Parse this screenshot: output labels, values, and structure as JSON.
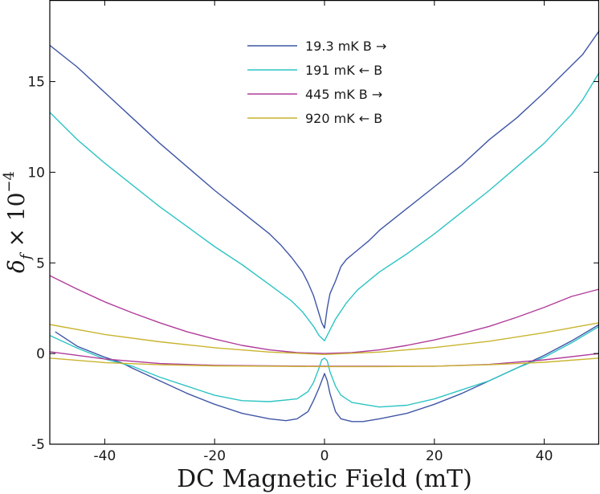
{
  "chart_data": {
    "type": "line",
    "title": "",
    "xlabel": "DC Magnetic Field (mT)",
    "ylabel": "δ_f × 10^−4",
    "ylabel_parts": {
      "base": "δ",
      "sub": "f",
      "times": " × 10",
      "exp": "−4"
    },
    "xlim": [
      -50,
      50
    ],
    "ylim": [
      -5,
      19.5
    ],
    "xticks": [
      -40,
      -20,
      0,
      20,
      40
    ],
    "xtick_labels": [
      "-40",
      "-20",
      "0",
      "20",
      "40"
    ],
    "yticks": [
      -5,
      0,
      5,
      10,
      15
    ],
    "ytick_labels": [
      "-5",
      "0",
      "5",
      "10",
      "15"
    ],
    "grid": false,
    "legend_position": "top-center",
    "series": [
      {
        "name": "19.3 mK B →",
        "color": "#3f56a6",
        "upper": {
          "x": [
            -50,
            -45,
            -40,
            -35,
            -30,
            -25,
            -20,
            -15,
            -10,
            -8,
            -6,
            -4,
            -3,
            -2,
            -1,
            -0.5,
            0,
            0.5,
            1,
            2,
            3,
            4,
            6,
            8,
            10,
            15,
            20,
            25,
            30,
            35,
            40,
            45,
            47,
            50
          ],
          "y": [
            17.0,
            15.8,
            14.4,
            13.0,
            11.6,
            10.3,
            9.0,
            7.8,
            6.6,
            6.0,
            5.3,
            4.5,
            3.9,
            3.2,
            2.2,
            1.7,
            1.4,
            2.5,
            3.3,
            4.0,
            4.8,
            5.2,
            5.7,
            6.2,
            6.8,
            8.0,
            9.2,
            10.4,
            11.8,
            13.0,
            14.4,
            15.9,
            16.5,
            17.8
          ]
        },
        "lower": {
          "x": [
            -49,
            -45,
            -40,
            -37,
            -35,
            -30,
            -25,
            -20,
            -15,
            -10,
            -7,
            -5,
            -3,
            -2,
            -1,
            0,
            0.5,
            1,
            2,
            3,
            5,
            7,
            10,
            15,
            20,
            25,
            30,
            35,
            40,
            45,
            50
          ],
          "y": [
            1.2,
            0.4,
            -0.2,
            -0.5,
            -0.8,
            -1.5,
            -2.2,
            -2.8,
            -3.3,
            -3.6,
            -3.7,
            -3.6,
            -3.2,
            -2.6,
            -1.9,
            -1.1,
            -1.5,
            -2.2,
            -3.2,
            -3.6,
            -3.75,
            -3.75,
            -3.6,
            -3.3,
            -2.8,
            -2.2,
            -1.5,
            -0.8,
            -0.1,
            0.7,
            1.6
          ]
        }
      },
      {
        "name": "191 mK ← B",
        "color": "#2ec4c4",
        "upper": {
          "x": [
            -50,
            -47,
            -45,
            -40,
            -35,
            -30,
            -25,
            -20,
            -15,
            -10,
            -6,
            -4,
            -2,
            -1,
            0,
            1,
            2,
            4,
            6,
            10,
            15,
            20,
            25,
            30,
            35,
            40,
            45,
            47,
            50
          ],
          "y": [
            13.3,
            12.4,
            11.8,
            10.5,
            9.3,
            8.1,
            7.0,
            5.9,
            4.9,
            3.8,
            2.9,
            2.3,
            1.5,
            1.0,
            0.7,
            1.3,
            1.9,
            2.8,
            3.5,
            4.5,
            5.5,
            6.6,
            7.8,
            9.0,
            10.3,
            11.6,
            13.2,
            14.0,
            15.5
          ]
        },
        "lower": {
          "x": [
            -50,
            -45,
            -40,
            -35,
            -30,
            -25,
            -20,
            -15,
            -10,
            -5,
            -3,
            -2,
            -1,
            -0.5,
            0,
            0.5,
            1,
            2,
            3,
            5,
            10,
            15,
            20,
            25,
            30,
            35,
            40,
            45,
            50
          ],
          "y": [
            1.0,
            0.3,
            -0.3,
            -0.7,
            -1.3,
            -1.8,
            -2.3,
            -2.6,
            -2.65,
            -2.5,
            -2.1,
            -1.6,
            -0.8,
            -0.35,
            -0.25,
            -0.4,
            -1.0,
            -1.8,
            -2.3,
            -2.7,
            -2.95,
            -2.85,
            -2.5,
            -2.0,
            -1.5,
            -0.8,
            -0.2,
            0.6,
            1.5
          ]
        }
      },
      {
        "name": "445 mK B →",
        "color": "#b03c9a",
        "upper": {
          "x": [
            -50,
            -45,
            -40,
            -35,
            -30,
            -25,
            -20,
            -15,
            -10,
            -5,
            0,
            5,
            10,
            15,
            20,
            25,
            30,
            35,
            40,
            45,
            50
          ],
          "y": [
            4.3,
            3.55,
            2.85,
            2.25,
            1.7,
            1.2,
            0.8,
            0.45,
            0.2,
            0.05,
            0.0,
            0.05,
            0.2,
            0.45,
            0.75,
            1.1,
            1.5,
            2.0,
            2.55,
            3.15,
            3.55
          ]
        },
        "lower": {
          "x": [
            -50,
            -40,
            -30,
            -20,
            -10,
            0,
            10,
            20,
            30,
            40,
            50
          ],
          "y": [
            0.1,
            -0.3,
            -0.55,
            -0.65,
            -0.68,
            -0.7,
            -0.7,
            -0.7,
            -0.6,
            -0.35,
            0.0
          ]
        }
      },
      {
        "name": "920 mK ← B",
        "color": "#c9b42e",
        "upper": {
          "x": [
            -50,
            -40,
            -30,
            -20,
            -10,
            0,
            10,
            20,
            30,
            40,
            50
          ],
          "y": [
            1.6,
            1.05,
            0.65,
            0.32,
            0.08,
            -0.05,
            0.08,
            0.33,
            0.68,
            1.15,
            1.7
          ]
        },
        "lower": {
          "x": [
            -50,
            -40,
            -30,
            -20,
            -10,
            0,
            10,
            20,
            30,
            40,
            50
          ],
          "y": [
            -0.25,
            -0.5,
            -0.62,
            -0.68,
            -0.7,
            -0.72,
            -0.72,
            -0.7,
            -0.62,
            -0.48,
            -0.25
          ]
        }
      }
    ]
  }
}
